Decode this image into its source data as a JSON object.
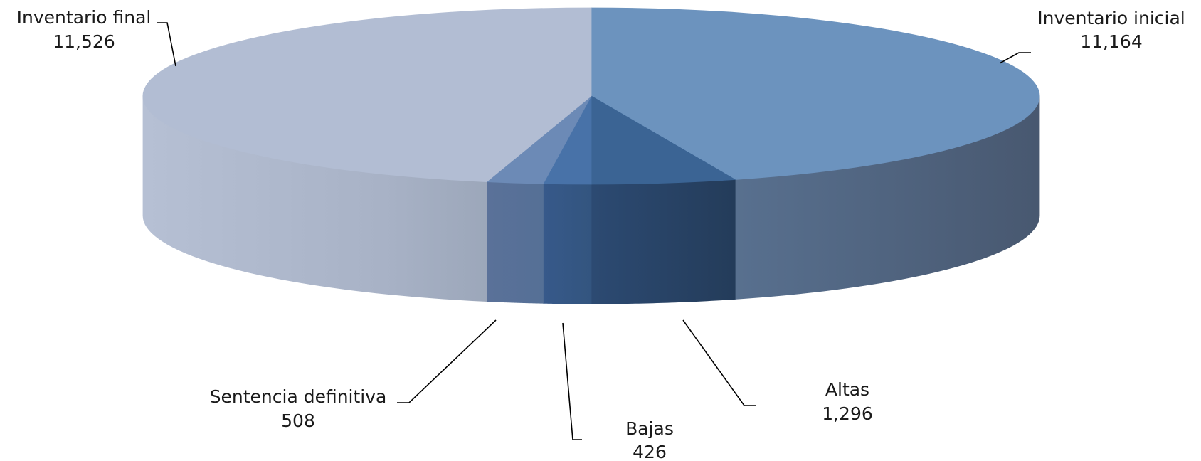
{
  "chart_data": {
    "type": "pie",
    "title": "",
    "legend": "none",
    "slices": [
      {
        "label": "Inventario inicial",
        "value": 11164,
        "value_text": "11,164",
        "top_color": "#6C93BE",
        "side_color": "#4B5C76"
      },
      {
        "label": "Altas",
        "value": 1296,
        "value_text": "1,296",
        "top_color": "#3B6494",
        "side_color": "#27405F"
      },
      {
        "label": "Bajas",
        "value": 426,
        "value_text": "426",
        "top_color": "#4872A8",
        "side_color": "#355984"
      },
      {
        "label": "Sentencia definitiva",
        "value": 508,
        "value_text": "508",
        "top_color": "#6C8AB6",
        "side_color": "#577095"
      },
      {
        "label": "Inventario final",
        "value": 11526,
        "value_text": "11,526",
        "top_color": "#B2BDD3",
        "side_color": "#A3AEC3"
      }
    ]
  }
}
